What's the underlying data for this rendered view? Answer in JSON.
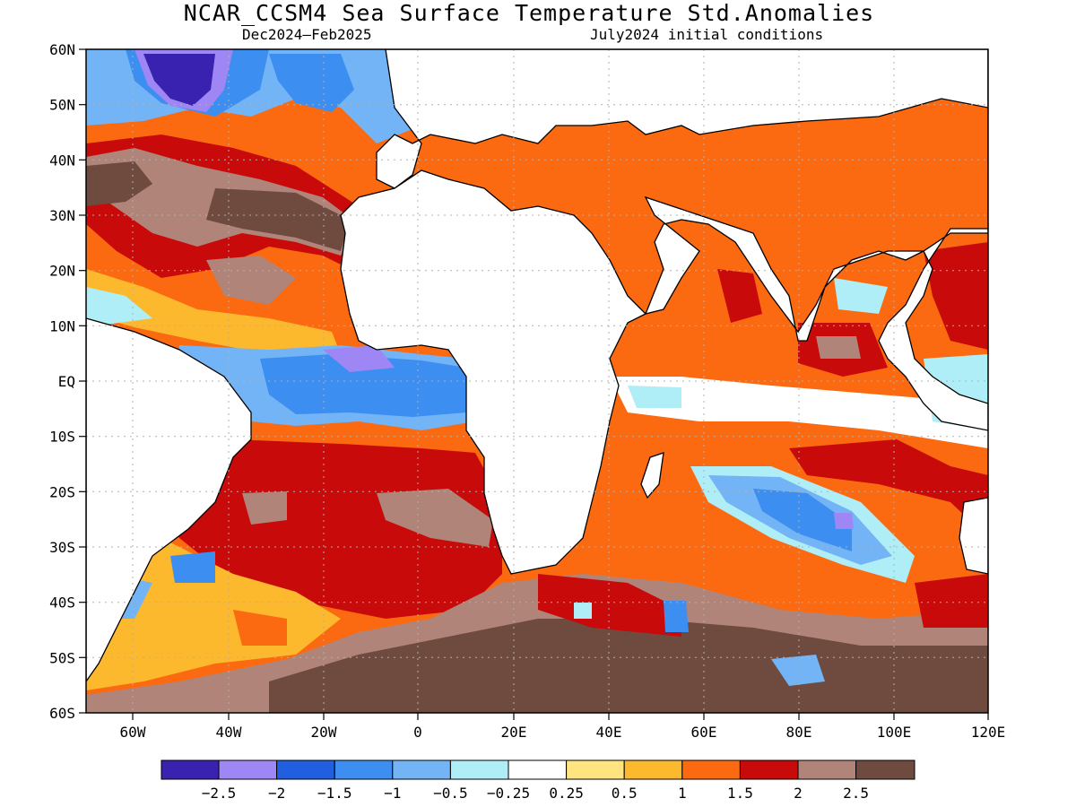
{
  "title": "NCAR_CCSM4 Sea Surface Temperature Std.Anomalies",
  "subtitle_left": "Dec2024–Feb2025",
  "subtitle_right": "July2024 initial conditions",
  "lat_labels": [
    "60N",
    "50N",
    "40N",
    "30N",
    "20N",
    "10N",
    "EQ",
    "10S",
    "20S",
    "30S",
    "40S",
    "50S",
    "60S"
  ],
  "lon_labels": [
    "60W",
    "40W",
    "20W",
    "0",
    "20E",
    "40E",
    "60E",
    "80E",
    "100E",
    "120E"
  ],
  "colorbar": {
    "colors": [
      "#3a22b0",
      "#9e87f4",
      "#1f5fe0",
      "#3c8ef0",
      "#72b4f6",
      "#b0eef7",
      "#ffffff",
      "#ffe480",
      "#fdb92e",
      "#fb6a10",
      "#c80a0a",
      "#b08479",
      "#6e4a3f"
    ],
    "labels": [
      "−2.5",
      "−2",
      "−1.5",
      "−1",
      "−0.5",
      "−0.25",
      "0.25",
      "0.5",
      "1",
      "1.5",
      "2",
      "2.5"
    ]
  },
  "colors": {
    "land": "#ffffff",
    "grid": "#b0b0b0",
    "coast": "#000000"
  }
}
